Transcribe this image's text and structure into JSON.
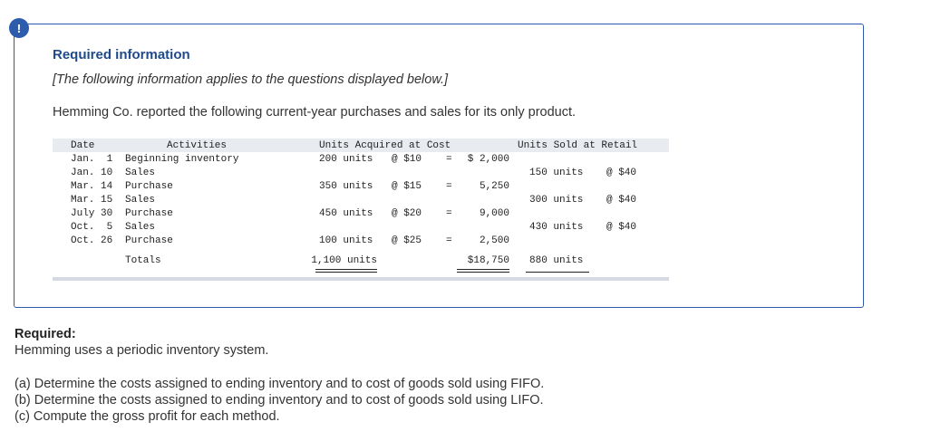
{
  "alert": {
    "glyph": "!"
  },
  "info": {
    "title": "Required information",
    "note": "[The following information applies to the questions displayed below.]",
    "intro": "Hemming Co. reported the following current-year purchases and sales for its only product."
  },
  "table": {
    "headers": {
      "date": "Date",
      "activities": "Activities",
      "acquired": "Units Acquired at Cost",
      "sold": "Units Sold at Retail"
    },
    "rows": [
      {
        "date": "Jan.  1",
        "activity": "Beginning inventory",
        "units": "200 units",
        "cost": "@ $10",
        "eq": "=",
        "total": "$ 2,000",
        "sold_units": "",
        "retail": ""
      },
      {
        "date": "Jan. 10",
        "activity": "Sales",
        "units": "",
        "cost": "",
        "eq": "",
        "total": "",
        "sold_units": "150 units",
        "retail": "@ $40"
      },
      {
        "date": "Mar. 14",
        "activity": "Purchase",
        "units": "350 units",
        "cost": "@ $15",
        "eq": "=",
        "total": "5,250",
        "sold_units": "",
        "retail": ""
      },
      {
        "date": "Mar. 15",
        "activity": "Sales",
        "units": "",
        "cost": "",
        "eq": "",
        "total": "",
        "sold_units": "300 units",
        "retail": "@ $40"
      },
      {
        "date": "July 30",
        "activity": "Purchase",
        "units": "450 units",
        "cost": "@ $20",
        "eq": "=",
        "total": "9,000",
        "sold_units": "",
        "retail": ""
      },
      {
        "date": "Oct.  5",
        "activity": "Sales",
        "units": "",
        "cost": "",
        "eq": "",
        "total": "",
        "sold_units": "430 units",
        "retail": "@ $40"
      },
      {
        "date": "Oct. 26",
        "activity": "Purchase",
        "units": "100 units",
        "cost": "@ $25",
        "eq": "=",
        "total": "2,500",
        "sold_units": "",
        "retail": ""
      }
    ],
    "totals": {
      "label": "Totals",
      "units": "1,100 units",
      "total": "$18,750",
      "sold_units": "880 units"
    }
  },
  "required": {
    "heading": "Required:",
    "system": "Hemming uses a periodic inventory system.",
    "questions": [
      "(a) Determine the costs assigned to ending inventory and to cost of goods sold using FIFO.",
      "(b) Determine the costs assigned to ending inventory and to cost of goods sold using LIFO.",
      "(c) Compute the gross profit for each method."
    ]
  }
}
